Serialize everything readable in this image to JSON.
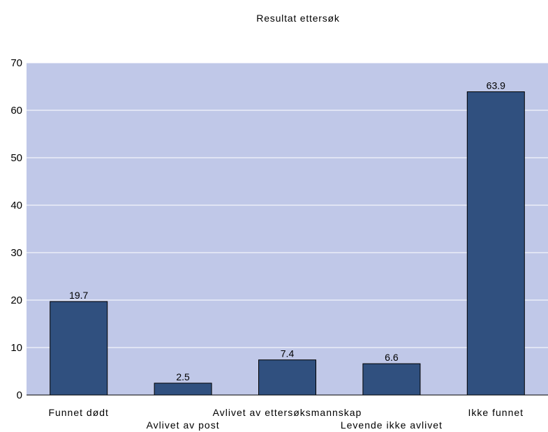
{
  "chart_data": {
    "type": "bar",
    "title": "Resultat ettersøk",
    "xlabel": "",
    "ylabel": "",
    "categories": [
      "Funnet dødt",
      "Avlivet av post",
      "Avlivet av ettersøksmannskap",
      "Levende ikke avlivet",
      "Ikke funnet"
    ],
    "values": [
      19.7,
      2.5,
      7.4,
      6.6,
      63.9
    ],
    "value_labels": [
      "19.7",
      "2.5",
      "7.4",
      "6.6",
      "63.9"
    ],
    "ylim": [
      0,
      70
    ],
    "yticks": [
      0,
      10,
      20,
      30,
      40,
      50,
      60,
      70
    ],
    "grid": true,
    "legend": "none",
    "colors": {
      "plot_background": "#c0c8e8",
      "bar_fill": "#30507f",
      "bar_stroke": "#000000",
      "gridline": "#ffffff"
    }
  }
}
